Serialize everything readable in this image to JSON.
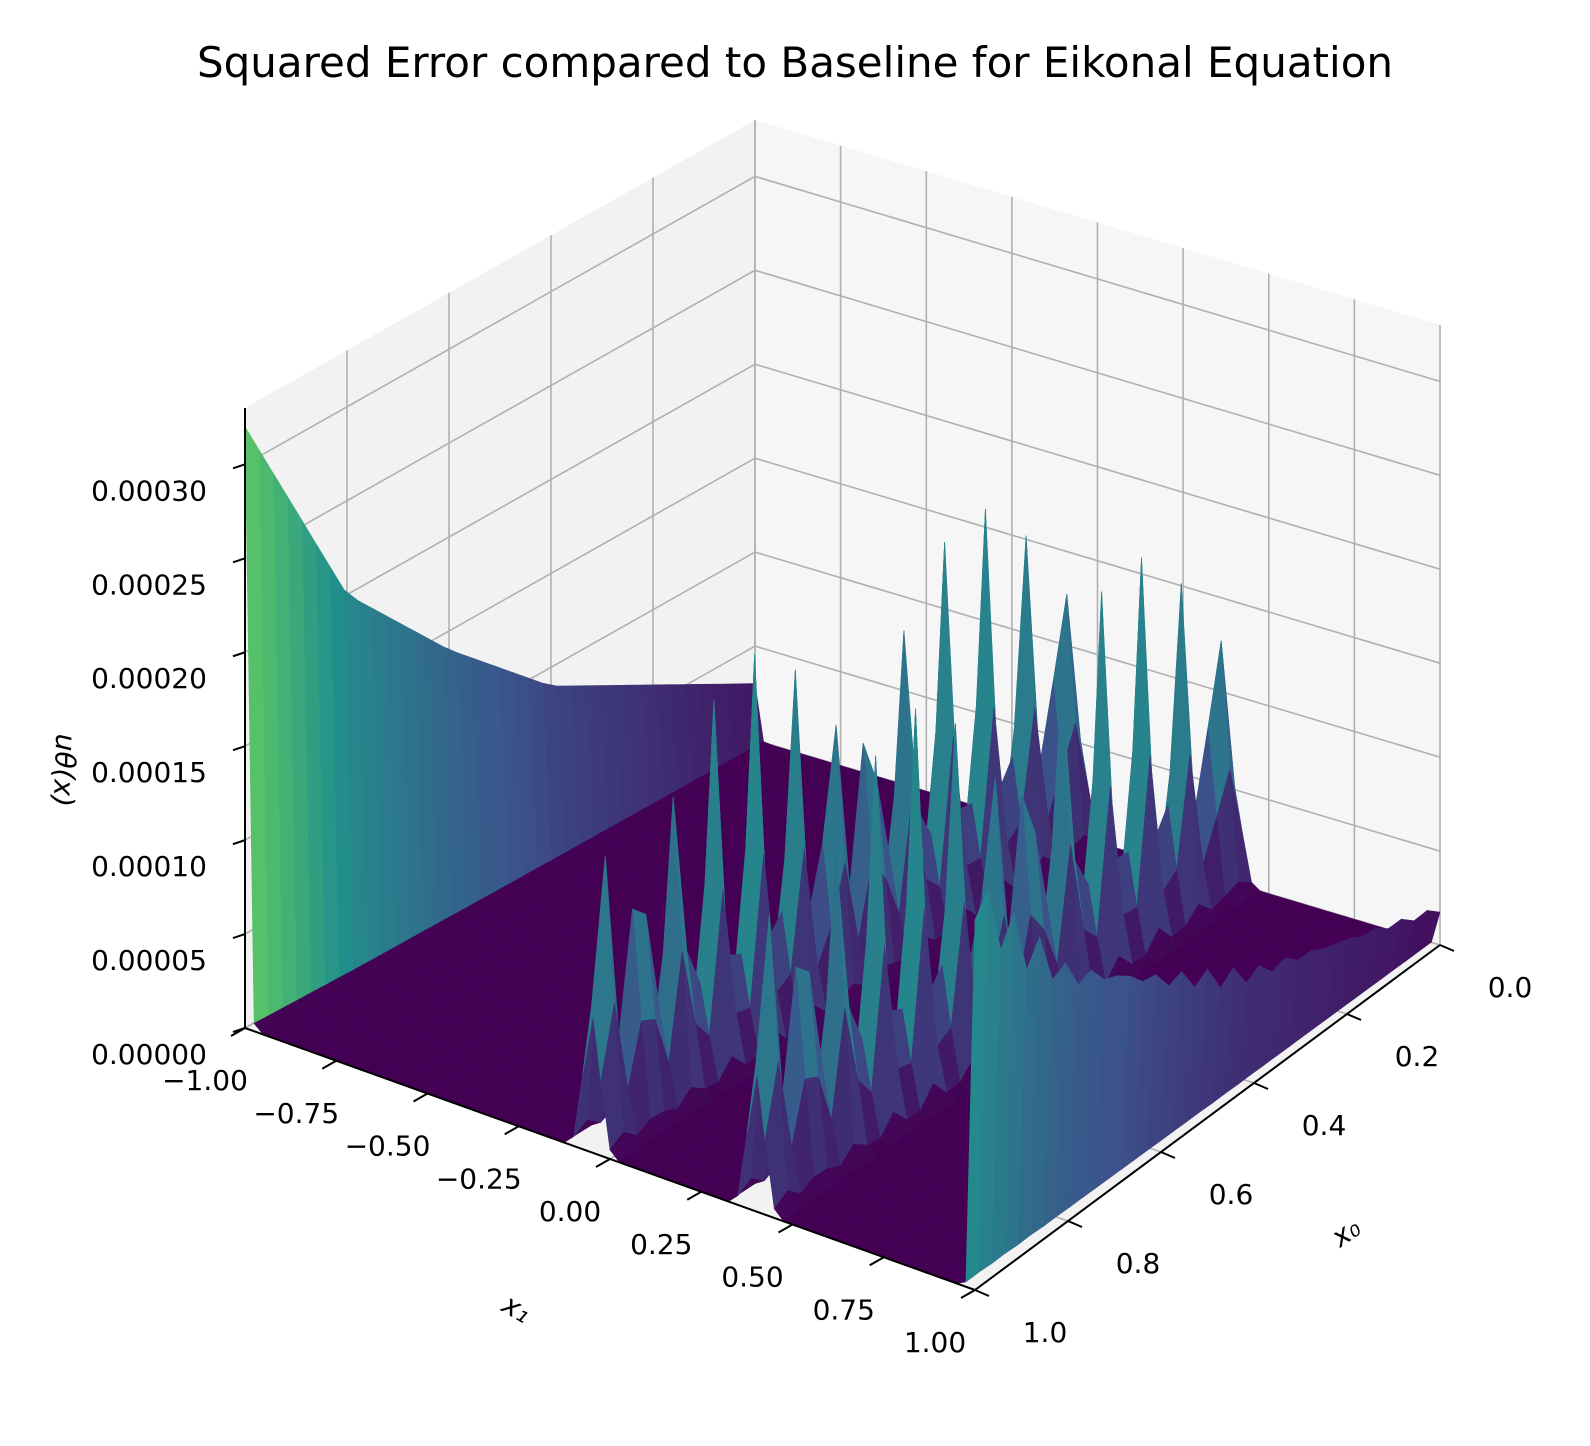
{
  "chart_data": {
    "type": "surface3d",
    "title": "Squared Error compared to Baseline for Eikonal Equation",
    "xlabel": "x₀",
    "ylabel": "x₁",
    "zlabel": "uθ(x)",
    "x_ticks": [
      "0.0",
      "0.2",
      "0.4",
      "0.6",
      "0.8",
      "1.0"
    ],
    "y_ticks": [
      "−1.00",
      "−0.75",
      "−0.50",
      "−0.25",
      "0.00",
      "0.25",
      "0.50",
      "0.75",
      "1.00"
    ],
    "z_ticks": [
      "0.00000",
      "0.00005",
      "0.00010",
      "0.00015",
      "0.00020",
      "0.00025",
      "0.00030"
    ],
    "xlim": [
      0,
      1
    ],
    "ylim": [
      -1,
      1
    ],
    "zlim": [
      0,
      0.00033
    ],
    "colormap": "viridis",
    "grid": true,
    "description_points": {
      "x0_profile": [
        [
          0.0,
          3e-05
        ],
        [
          0.2,
          6e-05
        ],
        [
          0.4,
          9e-05
        ],
        [
          0.6,
          0.00014
        ],
        [
          0.8,
          0.0002
        ],
        [
          1.0,
          0.00032
        ]
      ],
      "edge_y_minus1_peak": 0.00032,
      "edge_y_plus1_peak": 0.00022,
      "central_spikes_y": [
        -0.05,
        0.4
      ],
      "central_spike_max": 0.00021,
      "flat_region_value": 0.0
    }
  }
}
